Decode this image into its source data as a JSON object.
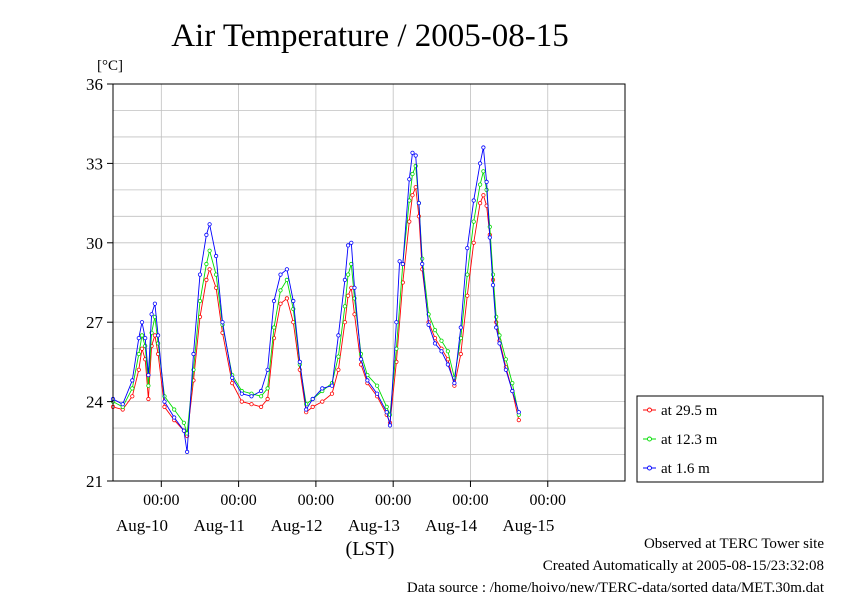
{
  "chart_data": {
    "type": "line",
    "title": "Air Temperature / 2005-08-15",
    "ylabel": "[°C]",
    "xlabel": "(LST)",
    "ylim": [
      21,
      36
    ],
    "yticks": [
      21,
      24,
      27,
      30,
      33,
      36
    ],
    "xlim": [
      "2005-08-09 09:00",
      "2005-08-15 23:59"
    ],
    "x_time_ticks": [
      {
        "time": "2005-08-10 00:00",
        "label": "00:00"
      },
      {
        "time": "2005-08-11 00:00",
        "label": "00:00"
      },
      {
        "time": "2005-08-12 00:00",
        "label": "00:00"
      },
      {
        "time": "2005-08-13 00:00",
        "label": "00:00"
      },
      {
        "time": "2005-08-14 00:00",
        "label": "00:00"
      },
      {
        "time": "2005-08-15 00:00",
        "label": "00:00"
      }
    ],
    "x_date_labels": [
      {
        "time": "2005-08-09 18:00",
        "label": "Aug-10"
      },
      {
        "time": "2005-08-10 18:00",
        "label": "Aug-11"
      },
      {
        "time": "2005-08-11 18:00",
        "label": "Aug-12"
      },
      {
        "time": "2005-08-12 18:00",
        "label": "Aug-13"
      },
      {
        "time": "2005-08-13 18:00",
        "label": "Aug-14"
      },
      {
        "time": "2005-08-14 18:00",
        "label": "Aug-15"
      }
    ],
    "grid": true,
    "legend_position": "right-bottom",
    "series": [
      {
        "name": "at 29.5 m",
        "color": "#ff0000",
        "points": [
          [
            "2005-08-09 09:00",
            23.8
          ],
          [
            "2005-08-09 12:00",
            23.7
          ],
          [
            "2005-08-09 15:00",
            24.2
          ],
          [
            "2005-08-09 17:00",
            25.2
          ],
          [
            "2005-08-09 18:00",
            26.0
          ],
          [
            "2005-08-09 19:00",
            25.6
          ],
          [
            "2005-08-09 20:00",
            24.1
          ],
          [
            "2005-08-09 21:00",
            26.1
          ],
          [
            "2005-08-09 22:00",
            26.5
          ],
          [
            "2005-08-09 23:00",
            25.8
          ],
          [
            "2005-08-10 01:00",
            23.8
          ],
          [
            "2005-08-10 04:00",
            23.3
          ],
          [
            "2005-08-10 07:00",
            22.9
          ],
          [
            "2005-08-10 08:00",
            22.7
          ],
          [
            "2005-08-10 10:00",
            24.8
          ],
          [
            "2005-08-10 12:00",
            27.2
          ],
          [
            "2005-08-10 14:00",
            28.6
          ],
          [
            "2005-08-10 15:00",
            29.0
          ],
          [
            "2005-08-10 17:00",
            28.3
          ],
          [
            "2005-08-10 19:00",
            26.6
          ],
          [
            "2005-08-10 22:00",
            24.7
          ],
          [
            "2005-08-11 01:00",
            24.0
          ],
          [
            "2005-08-11 04:00",
            23.9
          ],
          [
            "2005-08-11 07:00",
            23.8
          ],
          [
            "2005-08-11 09:00",
            24.1
          ],
          [
            "2005-08-11 11:00",
            26.4
          ],
          [
            "2005-08-11 13:00",
            27.7
          ],
          [
            "2005-08-11 15:00",
            27.9
          ],
          [
            "2005-08-11 17:00",
            27.0
          ],
          [
            "2005-08-11 19:00",
            25.2
          ],
          [
            "2005-08-11 21:00",
            23.6
          ],
          [
            "2005-08-11 23:00",
            23.8
          ],
          [
            "2005-08-12 02:00",
            24.0
          ],
          [
            "2005-08-12 05:00",
            24.3
          ],
          [
            "2005-08-12 07:00",
            25.2
          ],
          [
            "2005-08-12 09:00",
            27.0
          ],
          [
            "2005-08-12 10:00",
            28.0
          ],
          [
            "2005-08-12 11:00",
            28.3
          ],
          [
            "2005-08-12 12:00",
            27.3
          ],
          [
            "2005-08-12 14:00",
            25.4
          ],
          [
            "2005-08-12 16:00",
            24.7
          ],
          [
            "2005-08-12 19:00",
            24.2
          ],
          [
            "2005-08-12 22:00",
            23.5
          ],
          [
            "2005-08-12 23:00",
            23.2
          ],
          [
            "2005-08-13 01:00",
            25.5
          ],
          [
            "2005-08-13 03:00",
            28.5
          ],
          [
            "2005-08-13 05:00",
            30.8
          ],
          [
            "2005-08-13 06:00",
            31.8
          ],
          [
            "2005-08-13 07:00",
            32.1
          ],
          [
            "2005-08-13 08:00",
            31.0
          ],
          [
            "2005-08-13 09:00",
            29.0
          ],
          [
            "2005-08-13 11:00",
            27.0
          ],
          [
            "2005-08-13 13:00",
            26.4
          ],
          [
            "2005-08-13 15:00",
            26.0
          ],
          [
            "2005-08-13 17:00",
            25.6
          ],
          [
            "2005-08-13 19:00",
            24.6
          ],
          [
            "2005-08-13 21:00",
            25.8
          ],
          [
            "2005-08-13 23:00",
            28.0
          ],
          [
            "2005-08-14 01:00",
            30.0
          ],
          [
            "2005-08-14 03:00",
            31.5
          ],
          [
            "2005-08-14 04:00",
            31.8
          ],
          [
            "2005-08-14 05:00",
            31.4
          ],
          [
            "2005-08-14 06:00",
            30.3
          ],
          [
            "2005-08-14 07:00",
            28.6
          ],
          [
            "2005-08-14 08:00",
            27.0
          ],
          [
            "2005-08-14 09:00",
            26.3
          ],
          [
            "2005-08-14 11:00",
            25.3
          ],
          [
            "2005-08-14 13:00",
            24.4
          ],
          [
            "2005-08-14 15:00",
            23.3
          ]
        ]
      },
      {
        "name": "at 12.3 m",
        "color": "#00dd00",
        "points": [
          [
            "2005-08-09 09:00",
            24.0
          ],
          [
            "2005-08-09 12:00",
            23.8
          ],
          [
            "2005-08-09 15:00",
            24.5
          ],
          [
            "2005-08-09 17:00",
            25.8
          ],
          [
            "2005-08-09 18:00",
            26.5
          ],
          [
            "2005-08-09 19:00",
            26.1
          ],
          [
            "2005-08-09 20:00",
            24.6
          ],
          [
            "2005-08-09 21:00",
            26.6
          ],
          [
            "2005-08-09 22:00",
            27.2
          ],
          [
            "2005-08-09 23:00",
            26.2
          ],
          [
            "2005-08-10 01:00",
            24.2
          ],
          [
            "2005-08-10 04:00",
            23.7
          ],
          [
            "2005-08-10 07:00",
            23.2
          ],
          [
            "2005-08-10 08:00",
            22.8
          ],
          [
            "2005-08-10 10:00",
            25.2
          ],
          [
            "2005-08-10 12:00",
            27.8
          ],
          [
            "2005-08-10 14:00",
            29.2
          ],
          [
            "2005-08-10 15:00",
            29.7
          ],
          [
            "2005-08-10 17:00",
            28.8
          ],
          [
            "2005-08-10 19:00",
            26.9
          ],
          [
            "2005-08-10 22:00",
            25.0
          ],
          [
            "2005-08-11 01:00",
            24.4
          ],
          [
            "2005-08-11 04:00",
            24.3
          ],
          [
            "2005-08-11 07:00",
            24.2
          ],
          [
            "2005-08-11 09:00",
            24.5
          ],
          [
            "2005-08-11 11:00",
            26.8
          ],
          [
            "2005-08-11 13:00",
            28.2
          ],
          [
            "2005-08-11 15:00",
            28.6
          ],
          [
            "2005-08-11 17:00",
            27.5
          ],
          [
            "2005-08-11 19:00",
            25.4
          ],
          [
            "2005-08-11 21:00",
            23.9
          ],
          [
            "2005-08-11 23:00",
            24.1
          ],
          [
            "2005-08-12 02:00",
            24.4
          ],
          [
            "2005-08-12 05:00",
            24.7
          ],
          [
            "2005-08-12 07:00",
            25.7
          ],
          [
            "2005-08-12 09:00",
            27.6
          ],
          [
            "2005-08-12 10:00",
            28.8
          ],
          [
            "2005-08-12 11:00",
            29.2
          ],
          [
            "2005-08-12 12:00",
            27.9
          ],
          [
            "2005-08-12 14:00",
            25.8
          ],
          [
            "2005-08-12 16:00",
            25.0
          ],
          [
            "2005-08-12 19:00",
            24.6
          ],
          [
            "2005-08-12 22:00",
            23.8
          ],
          [
            "2005-08-12 23:00",
            23.5
          ],
          [
            "2005-08-13 01:00",
            26.0
          ],
          [
            "2005-08-13 03:00",
            29.2
          ],
          [
            "2005-08-13 05:00",
            31.6
          ],
          [
            "2005-08-13 06:00",
            32.6
          ],
          [
            "2005-08-13 07:00",
            32.9
          ],
          [
            "2005-08-13 08:00",
            31.5
          ],
          [
            "2005-08-13 09:00",
            29.4
          ],
          [
            "2005-08-13 11:00",
            27.3
          ],
          [
            "2005-08-13 13:00",
            26.7
          ],
          [
            "2005-08-13 15:00",
            26.3
          ],
          [
            "2005-08-13 17:00",
            25.9
          ],
          [
            "2005-08-13 19:00",
            24.9
          ],
          [
            "2005-08-13 21:00",
            26.4
          ],
          [
            "2005-08-13 23:00",
            28.8
          ],
          [
            "2005-08-14 01:00",
            30.8
          ],
          [
            "2005-08-14 03:00",
            32.2
          ],
          [
            "2005-08-14 04:00",
            32.7
          ],
          [
            "2005-08-14 05:00",
            32.0
          ],
          [
            "2005-08-14 06:00",
            30.6
          ],
          [
            "2005-08-14 07:00",
            28.8
          ],
          [
            "2005-08-14 08:00",
            27.2
          ],
          [
            "2005-08-14 09:00",
            26.5
          ],
          [
            "2005-08-14 11:00",
            25.6
          ],
          [
            "2005-08-14 13:00",
            24.7
          ],
          [
            "2005-08-14 15:00",
            23.5
          ]
        ]
      },
      {
        "name": "at 1.6 m",
        "color": "#0000ff",
        "points": [
          [
            "2005-08-09 09:00",
            24.1
          ],
          [
            "2005-08-09 12:00",
            23.9
          ],
          [
            "2005-08-09 15:00",
            24.8
          ],
          [
            "2005-08-09 17:00",
            26.4
          ],
          [
            "2005-08-09 18:00",
            27.0
          ],
          [
            "2005-08-09 19:00",
            26.4
          ],
          [
            "2005-08-09 20:00",
            25.0
          ],
          [
            "2005-08-09 21:00",
            27.3
          ],
          [
            "2005-08-09 22:00",
            27.7
          ],
          [
            "2005-08-09 23:00",
            26.5
          ],
          [
            "2005-08-10 01:00",
            24.0
          ],
          [
            "2005-08-10 04:00",
            23.4
          ],
          [
            "2005-08-10 07:00",
            22.9
          ],
          [
            "2005-08-10 08:00",
            22.1
          ],
          [
            "2005-08-10 10:00",
            25.8
          ],
          [
            "2005-08-10 12:00",
            28.8
          ],
          [
            "2005-08-10 14:00",
            30.3
          ],
          [
            "2005-08-10 15:00",
            30.7
          ],
          [
            "2005-08-10 17:00",
            29.5
          ],
          [
            "2005-08-10 19:00",
            27.0
          ],
          [
            "2005-08-10 22:00",
            24.9
          ],
          [
            "2005-08-11 01:00",
            24.3
          ],
          [
            "2005-08-11 04:00",
            24.2
          ],
          [
            "2005-08-11 07:00",
            24.4
          ],
          [
            "2005-08-11 09:00",
            25.2
          ],
          [
            "2005-08-11 11:00",
            27.8
          ],
          [
            "2005-08-11 13:00",
            28.8
          ],
          [
            "2005-08-11 15:00",
            29.0
          ],
          [
            "2005-08-11 17:00",
            27.8
          ],
          [
            "2005-08-11 19:00",
            25.5
          ],
          [
            "2005-08-11 21:00",
            23.7
          ],
          [
            "2005-08-11 23:00",
            24.1
          ],
          [
            "2005-08-12 02:00",
            24.5
          ],
          [
            "2005-08-12 05:00",
            24.6
          ],
          [
            "2005-08-12 07:00",
            26.5
          ],
          [
            "2005-08-12 09:00",
            28.6
          ],
          [
            "2005-08-12 10:00",
            29.9
          ],
          [
            "2005-08-12 11:00",
            30.0
          ],
          [
            "2005-08-12 12:00",
            28.3
          ],
          [
            "2005-08-12 14:00",
            25.6
          ],
          [
            "2005-08-12 16:00",
            24.8
          ],
          [
            "2005-08-12 19:00",
            24.3
          ],
          [
            "2005-08-12 22:00",
            23.6
          ],
          [
            "2005-08-12 23:00",
            23.1
          ],
          [
            "2005-08-13 01:00",
            27.0
          ],
          [
            "2005-08-13 02:00",
            29.3
          ],
          [
            "2005-08-13 03:00",
            29.2
          ],
          [
            "2005-08-13 05:00",
            32.4
          ],
          [
            "2005-08-13 06:00",
            33.4
          ],
          [
            "2005-08-13 07:00",
            33.3
          ],
          [
            "2005-08-13 08:00",
            31.5
          ],
          [
            "2005-08-13 09:00",
            29.2
          ],
          [
            "2005-08-13 11:00",
            26.9
          ],
          [
            "2005-08-13 13:00",
            26.2
          ],
          [
            "2005-08-13 15:00",
            25.9
          ],
          [
            "2005-08-13 17:00",
            25.4
          ],
          [
            "2005-08-13 19:00",
            24.7
          ],
          [
            "2005-08-13 21:00",
            26.8
          ],
          [
            "2005-08-13 23:00",
            29.8
          ],
          [
            "2005-08-14 01:00",
            31.6
          ],
          [
            "2005-08-14 03:00",
            33.0
          ],
          [
            "2005-08-14 04:00",
            33.6
          ],
          [
            "2005-08-14 05:00",
            32.3
          ],
          [
            "2005-08-14 06:00",
            30.2
          ],
          [
            "2005-08-14 07:00",
            28.4
          ],
          [
            "2005-08-14 08:00",
            26.8
          ],
          [
            "2005-08-14 09:00",
            26.2
          ],
          [
            "2005-08-14 11:00",
            25.2
          ],
          [
            "2005-08-14 13:00",
            24.4
          ],
          [
            "2005-08-14 15:00",
            23.6
          ]
        ]
      }
    ]
  },
  "footer": {
    "observed": "Observed at TERC Tower site",
    "created": "Created Automatically at 2005-08-15/23:32:08",
    "source": "Data source : /home/hoivo/new/TERC-data/sorted  data/MET.30m.dat"
  }
}
